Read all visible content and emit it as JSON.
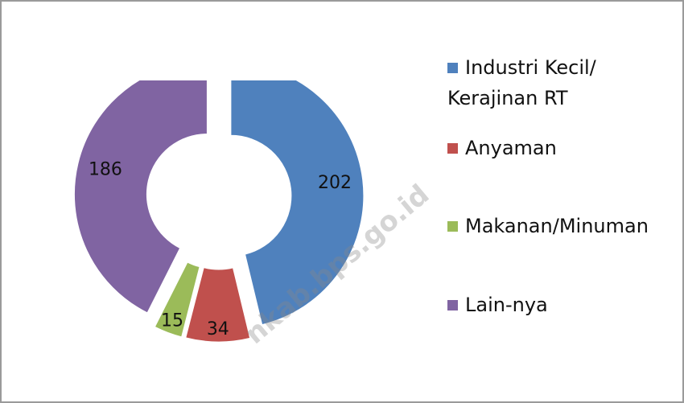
{
  "chart_data": {
    "type": "donut",
    "categories": [
      "Industri Kecil/ Kerajinan RT",
      "Anyaman",
      "Makanan/Minuman",
      "Lain-nya"
    ],
    "values": [
      202,
      34,
      15,
      186
    ],
    "colors": [
      "#4f81bd",
      "#c0504d",
      "#9bbb59",
      "#8064a2"
    ],
    "legend_position": "right",
    "watermark": "nkab.bps.go.id"
  }
}
